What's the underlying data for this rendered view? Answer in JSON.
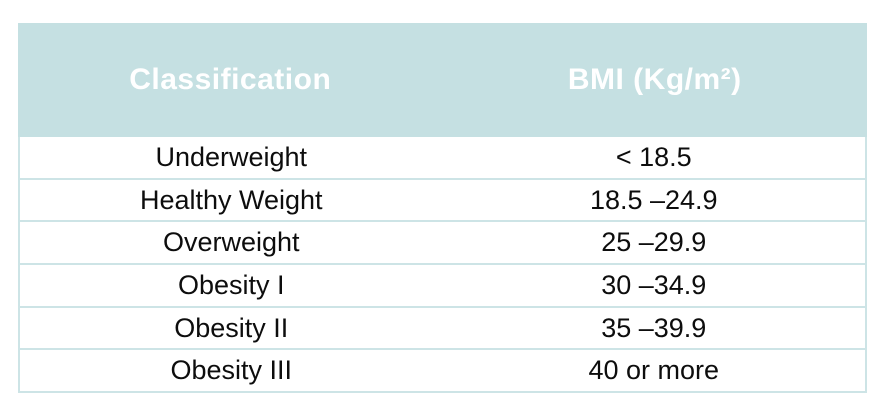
{
  "table": {
    "headers": {
      "classification": "Classification",
      "bmi": "BMI (Kg/m²)"
    },
    "rows": [
      {
        "classification": "Underweight",
        "bmi": "< 18.5"
      },
      {
        "classification": "Healthy Weight",
        "bmi": "18.5 –24.9"
      },
      {
        "classification": "Overweight",
        "bmi": "25 –29.9"
      },
      {
        "classification": "Obesity I",
        "bmi": "30 –34.9"
      },
      {
        "classification": "Obesity II",
        "bmi": "35 –39.9"
      },
      {
        "classification": "Obesity III",
        "bmi": "40 or more"
      }
    ],
    "colors": {
      "header_bg": "#c5e0e2",
      "header_text": "#ffffff",
      "row_border": "#cde4e6",
      "body_text": "#0d0d0d",
      "page_bg": "#ffffff"
    }
  },
  "chart_data": {
    "type": "table",
    "title": "",
    "columns": [
      "Classification",
      "BMI (Kg/m²)"
    ],
    "rows": [
      [
        "Underweight",
        "< 18.5"
      ],
      [
        "Healthy Weight",
        "18.5 –24.9"
      ],
      [
        "Overweight",
        "25 –29.9"
      ],
      [
        "Obesity I",
        "30 –34.9"
      ],
      [
        "Obesity II",
        "35 –39.9"
      ],
      [
        "Obesity III",
        "40 or more"
      ]
    ]
  }
}
